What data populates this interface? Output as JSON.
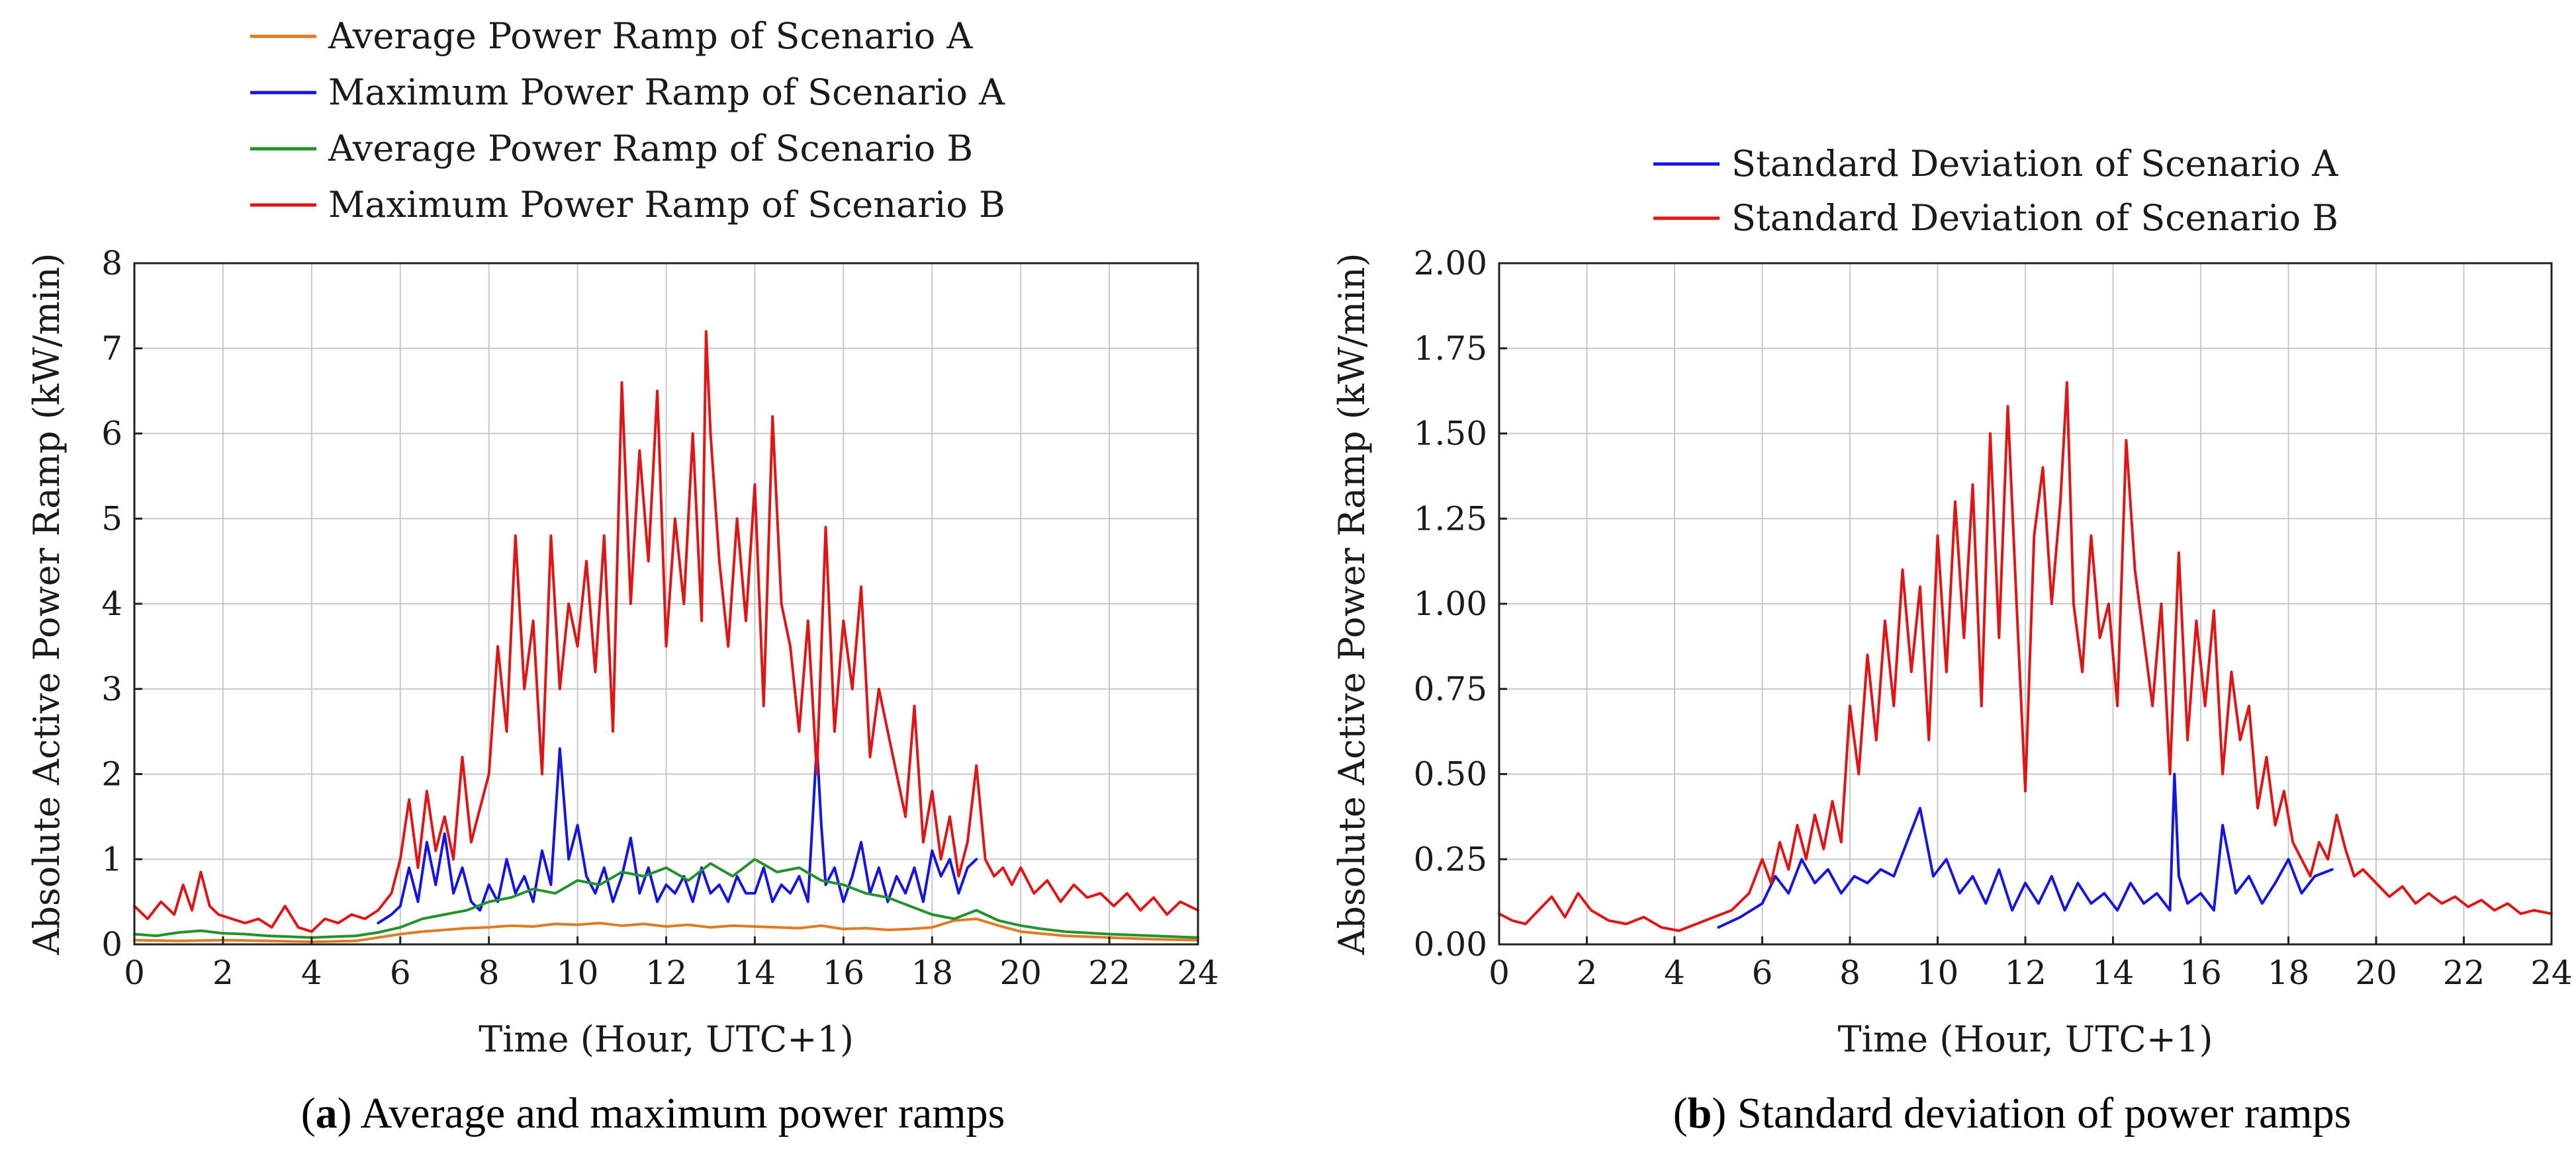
{
  "chart_data": [
    {
      "id": "a",
      "type": "line",
      "caption_label": "a",
      "caption_text": " Average and maximum power ramps",
      "xlabel": "Time (Hour, UTC+1)",
      "ylabel": "Absolute Active Power Ramp (kW/min)",
      "xlim": [
        0,
        24
      ],
      "ylim": [
        0,
        8
      ],
      "xticks": [
        0,
        2,
        4,
        6,
        8,
        10,
        12,
        14,
        16,
        18,
        20,
        22,
        24
      ],
      "yticks": [
        0,
        1,
        2,
        3,
        4,
        5,
        6,
        7,
        8
      ],
      "ytick_labels": [
        "0",
        "1",
        "2",
        "3",
        "4",
        "5",
        "6",
        "7",
        "8"
      ],
      "grid": true,
      "legend_position": "top",
      "series": [
        {
          "name": "Average Power Ramp of Scenario A",
          "color": "#e07b24",
          "x": [
            0,
            1,
            2,
            3,
            4,
            5,
            5.5,
            6,
            6.5,
            7,
            7.5,
            8,
            8.5,
            9,
            9.5,
            10,
            10.5,
            11,
            11.5,
            12,
            12.5,
            13,
            13.5,
            14,
            14.5,
            15,
            15.5,
            16,
            16.5,
            17,
            17.5,
            18,
            18.5,
            19,
            19.5,
            20,
            21,
            22,
            23,
            24
          ],
          "y": [
            0.05,
            0.04,
            0.05,
            0.04,
            0.03,
            0.04,
            0.08,
            0.12,
            0.15,
            0.17,
            0.19,
            0.2,
            0.22,
            0.21,
            0.24,
            0.23,
            0.25,
            0.22,
            0.24,
            0.21,
            0.23,
            0.2,
            0.22,
            0.21,
            0.2,
            0.19,
            0.22,
            0.18,
            0.19,
            0.17,
            0.18,
            0.2,
            0.28,
            0.3,
            0.22,
            0.15,
            0.1,
            0.08,
            0.06,
            0.05
          ]
        },
        {
          "name": "Maximum Power Ramp of Scenario A",
          "color": "#1515e0",
          "x": [
            5.5,
            5.8,
            6.0,
            6.2,
            6.4,
            6.6,
            6.8,
            7.0,
            7.2,
            7.4,
            7.6,
            7.8,
            8.0,
            8.2,
            8.4,
            8.6,
            8.8,
            9.0,
            9.2,
            9.4,
            9.6,
            9.8,
            10.0,
            10.2,
            10.4,
            10.6,
            10.8,
            11.0,
            11.2,
            11.4,
            11.6,
            11.8,
            12.0,
            12.2,
            12.4,
            12.6,
            12.8,
            13.0,
            13.2,
            13.4,
            13.6,
            13.8,
            14.0,
            14.2,
            14.4,
            14.6,
            14.8,
            15.0,
            15.2,
            15.4,
            15.5,
            15.6,
            15.8,
            16.0,
            16.2,
            16.4,
            16.6,
            16.8,
            17.0,
            17.2,
            17.4,
            17.6,
            17.8,
            18.0,
            18.2,
            18.4,
            18.6,
            18.8,
            19.0
          ],
          "y": [
            0.25,
            0.35,
            0.45,
            0.9,
            0.5,
            1.2,
            0.7,
            1.3,
            0.6,
            0.9,
            0.5,
            0.4,
            0.7,
            0.5,
            1.0,
            0.6,
            0.8,
            0.5,
            1.1,
            0.7,
            2.3,
            1.0,
            1.4,
            0.8,
            0.6,
            0.9,
            0.5,
            0.8,
            1.25,
            0.6,
            0.9,
            0.5,
            0.7,
            0.6,
            0.8,
            0.5,
            0.9,
            0.6,
            0.7,
            0.5,
            0.8,
            0.6,
            0.6,
            0.9,
            0.5,
            0.7,
            0.6,
            0.8,
            0.5,
            2.35,
            1.4,
            0.7,
            0.9,
            0.5,
            0.8,
            1.2,
            0.6,
            0.9,
            0.5,
            0.8,
            0.6,
            0.9,
            0.5,
            1.1,
            0.8,
            1.0,
            0.6,
            0.9,
            1.0
          ]
        },
        {
          "name": "Average Power Ramp of Scenario B",
          "color": "#22922a",
          "x": [
            0,
            0.5,
            1,
            1.5,
            2,
            2.5,
            3,
            3.5,
            4,
            4.5,
            5,
            5.5,
            6,
            6.5,
            7,
            7.5,
            8,
            8.5,
            9,
            9.5,
            10,
            10.5,
            11,
            11.5,
            12,
            12.5,
            13,
            13.5,
            14,
            14.5,
            15,
            15.5,
            16,
            16.5,
            17,
            17.5,
            18,
            18.5,
            19,
            19.5,
            20,
            20.5,
            21,
            22,
            23,
            24
          ],
          "y": [
            0.12,
            0.1,
            0.14,
            0.16,
            0.13,
            0.12,
            0.1,
            0.09,
            0.08,
            0.09,
            0.1,
            0.14,
            0.2,
            0.3,
            0.35,
            0.4,
            0.5,
            0.55,
            0.65,
            0.6,
            0.75,
            0.7,
            0.85,
            0.8,
            0.9,
            0.75,
            0.95,
            0.8,
            1.0,
            0.85,
            0.9,
            0.75,
            0.7,
            0.6,
            0.55,
            0.45,
            0.35,
            0.3,
            0.4,
            0.28,
            0.22,
            0.18,
            0.15,
            0.12,
            0.1,
            0.08
          ]
        },
        {
          "name": "Maximum Power Ramp of Scenario B",
          "color": "#e01515",
          "x": [
            0,
            0.3,
            0.6,
            0.9,
            1.1,
            1.3,
            1.5,
            1.7,
            1.9,
            2.2,
            2.5,
            2.8,
            3.1,
            3.4,
            3.7,
            4.0,
            4.3,
            4.6,
            4.9,
            5.2,
            5.5,
            5.8,
            6.0,
            6.2,
            6.4,
            6.6,
            6.8,
            7.0,
            7.2,
            7.4,
            7.6,
            7.8,
            8.0,
            8.2,
            8.4,
            8.6,
            8.8,
            9.0,
            9.2,
            9.4,
            9.6,
            9.8,
            10.0,
            10.2,
            10.4,
            10.6,
            10.8,
            11.0,
            11.2,
            11.4,
            11.6,
            11.8,
            12.0,
            12.2,
            12.4,
            12.6,
            12.8,
            12.9,
            13.0,
            13.2,
            13.4,
            13.6,
            13.8,
            14.0,
            14.2,
            14.4,
            14.6,
            14.8,
            15.0,
            15.2,
            15.4,
            15.6,
            15.8,
            16.0,
            16.2,
            16.4,
            16.6,
            16.8,
            17.0,
            17.2,
            17.4,
            17.6,
            17.8,
            18.0,
            18.2,
            18.4,
            18.6,
            18.8,
            19.0,
            19.2,
            19.4,
            19.6,
            19.8,
            20.0,
            20.3,
            20.6,
            20.9,
            21.2,
            21.5,
            21.8,
            22.1,
            22.4,
            22.7,
            23.0,
            23.3,
            23.6,
            24.0
          ],
          "y": [
            0.45,
            0.3,
            0.5,
            0.35,
            0.7,
            0.4,
            0.85,
            0.45,
            0.35,
            0.3,
            0.25,
            0.3,
            0.2,
            0.45,
            0.2,
            0.15,
            0.3,
            0.25,
            0.35,
            0.3,
            0.4,
            0.6,
            1.0,
            1.7,
            0.9,
            1.8,
            1.1,
            1.5,
            1.0,
            2.2,
            1.2,
            1.6,
            2.0,
            3.5,
            2.5,
            4.8,
            3.0,
            3.8,
            2.0,
            4.8,
            3.0,
            4.0,
            3.5,
            4.5,
            3.2,
            4.8,
            2.5,
            6.6,
            4.0,
            5.8,
            4.5,
            6.5,
            3.5,
            5.0,
            4.0,
            6.0,
            3.8,
            7.2,
            6.0,
            4.5,
            3.5,
            5.0,
            3.8,
            5.4,
            2.8,
            6.2,
            4.0,
            3.5,
            2.5,
            3.8,
            2.0,
            4.9,
            2.5,
            3.8,
            3.0,
            4.2,
            2.2,
            3.0,
            2.5,
            2.0,
            1.5,
            2.8,
            1.2,
            1.8,
            1.0,
            1.5,
            0.8,
            1.2,
            2.1,
            1.0,
            0.8,
            0.9,
            0.7,
            0.9,
            0.6,
            0.75,
            0.5,
            0.7,
            0.55,
            0.6,
            0.45,
            0.6,
            0.4,
            0.55,
            0.35,
            0.5,
            0.4
          ]
        }
      ]
    },
    {
      "id": "b",
      "type": "line",
      "caption_label": "b",
      "caption_text": " Standard deviation of power ramps",
      "xlabel": "Time (Hour, UTC+1)",
      "ylabel": "Absolute Active Power Ramp (kW/min)",
      "xlim": [
        0,
        24
      ],
      "ylim": [
        0,
        2
      ],
      "xticks": [
        0,
        2,
        4,
        6,
        8,
        10,
        12,
        14,
        16,
        18,
        20,
        22,
        24
      ],
      "yticks": [
        0,
        0.25,
        0.5,
        0.75,
        1.0,
        1.25,
        1.5,
        1.75,
        2.0
      ],
      "ytick_labels": [
        "0.00",
        "0.25",
        "0.50",
        "0.75",
        "1.00",
        "1.25",
        "1.50",
        "1.75",
        "2.00"
      ],
      "grid": true,
      "legend_position": "top",
      "series": [
        {
          "name": "Standard Deviation of Scenario A",
          "color": "#1515e0",
          "x": [
            5.0,
            5.5,
            6.0,
            6.3,
            6.6,
            6.9,
            7.2,
            7.5,
            7.8,
            8.1,
            8.4,
            8.7,
            9.0,
            9.3,
            9.6,
            9.9,
            10.2,
            10.5,
            10.8,
            11.1,
            11.4,
            11.7,
            12.0,
            12.3,
            12.6,
            12.9,
            13.2,
            13.5,
            13.8,
            14.1,
            14.4,
            14.7,
            15.0,
            15.3,
            15.4,
            15.5,
            15.7,
            16.0,
            16.3,
            16.5,
            16.8,
            17.1,
            17.4,
            17.7,
            18.0,
            18.3,
            18.6,
            19.0
          ],
          "y": [
            0.05,
            0.08,
            0.12,
            0.2,
            0.15,
            0.25,
            0.18,
            0.22,
            0.15,
            0.2,
            0.18,
            0.22,
            0.2,
            0.3,
            0.4,
            0.2,
            0.25,
            0.15,
            0.2,
            0.12,
            0.22,
            0.1,
            0.18,
            0.12,
            0.2,
            0.1,
            0.18,
            0.12,
            0.15,
            0.1,
            0.18,
            0.12,
            0.15,
            0.1,
            0.5,
            0.2,
            0.12,
            0.15,
            0.1,
            0.35,
            0.15,
            0.2,
            0.12,
            0.18,
            0.25,
            0.15,
            0.2,
            0.22
          ]
        },
        {
          "name": "Standard Deviation of Scenario B",
          "color": "#e01515",
          "x": [
            0,
            0.3,
            0.6,
            0.9,
            1.2,
            1.5,
            1.8,
            2.1,
            2.5,
            2.9,
            3.3,
            3.7,
            4.1,
            4.5,
            4.9,
            5.3,
            5.7,
            6.0,
            6.2,
            6.4,
            6.6,
            6.8,
            7.0,
            7.2,
            7.4,
            7.6,
            7.8,
            8.0,
            8.2,
            8.4,
            8.6,
            8.8,
            9.0,
            9.2,
            9.4,
            9.6,
            9.8,
            10.0,
            10.2,
            10.4,
            10.6,
            10.8,
            11.0,
            11.2,
            11.4,
            11.6,
            11.8,
            12.0,
            12.2,
            12.4,
            12.6,
            12.8,
            12.95,
            13.1,
            13.3,
            13.5,
            13.7,
            13.9,
            14.1,
            14.3,
            14.5,
            14.7,
            14.9,
            15.1,
            15.3,
            15.5,
            15.7,
            15.9,
            16.1,
            16.3,
            16.5,
            16.7,
            16.9,
            17.1,
            17.3,
            17.5,
            17.7,
            17.9,
            18.1,
            18.3,
            18.5,
            18.7,
            18.9,
            19.1,
            19.3,
            19.5,
            19.7,
            20.0,
            20.3,
            20.6,
            20.9,
            21.2,
            21.5,
            21.8,
            22.1,
            22.4,
            22.7,
            23.0,
            23.3,
            23.6,
            24.0
          ],
          "y": [
            0.09,
            0.07,
            0.06,
            0.1,
            0.14,
            0.08,
            0.15,
            0.1,
            0.07,
            0.06,
            0.08,
            0.05,
            0.04,
            0.06,
            0.08,
            0.1,
            0.15,
            0.25,
            0.18,
            0.3,
            0.22,
            0.35,
            0.25,
            0.38,
            0.28,
            0.42,
            0.3,
            0.7,
            0.5,
            0.85,
            0.6,
            0.95,
            0.7,
            1.1,
            0.8,
            1.05,
            0.6,
            1.2,
            0.8,
            1.3,
            0.9,
            1.35,
            0.7,
            1.5,
            0.9,
            1.58,
            1.0,
            0.45,
            1.2,
            1.4,
            1.0,
            1.3,
            1.65,
            1.0,
            0.8,
            1.2,
            0.9,
            1.0,
            0.7,
            1.48,
            1.1,
            0.9,
            0.7,
            1.0,
            0.5,
            1.15,
            0.6,
            0.95,
            0.7,
            0.98,
            0.5,
            0.8,
            0.6,
            0.7,
            0.4,
            0.55,
            0.35,
            0.45,
            0.3,
            0.25,
            0.2,
            0.3,
            0.25,
            0.38,
            0.28,
            0.2,
            0.22,
            0.18,
            0.14,
            0.17,
            0.12,
            0.15,
            0.12,
            0.14,
            0.11,
            0.13,
            0.1,
            0.12,
            0.09,
            0.1,
            0.09
          ]
        }
      ]
    }
  ]
}
